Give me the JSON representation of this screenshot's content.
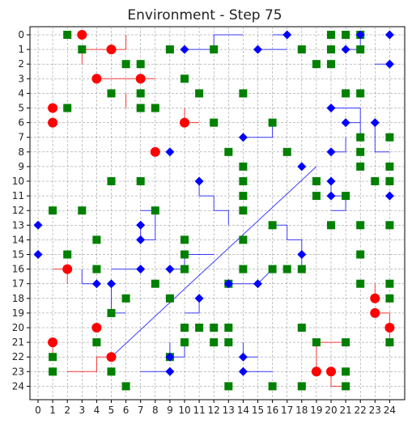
{
  "title": "Environment - Step 75",
  "x_ticks": [
    "0",
    "1",
    "2",
    "3",
    "4",
    "5",
    "6",
    "7",
    "8",
    "9",
    "10",
    "11",
    "12",
    "13",
    "14",
    "15",
    "16",
    "17",
    "18",
    "19",
    "20",
    "21",
    "22",
    "23",
    "24"
  ],
  "y_ticks": [
    "0",
    "1",
    "2",
    "3",
    "4",
    "5",
    "6",
    "7",
    "8",
    "9",
    "10",
    "11",
    "12",
    "13",
    "14",
    "15",
    "16",
    "17",
    "18",
    "19",
    "20",
    "21",
    "22",
    "23",
    "24"
  ],
  "colors": {
    "red": "#ff0000",
    "green": "#008000",
    "blue": "#0000ff",
    "grid": "#888888"
  },
  "grid": {
    "size": 25,
    "gridlines": true
  },
  "red_agents": [
    [
      3,
      0
    ],
    [
      5,
      1
    ],
    [
      4,
      3
    ],
    [
      7,
      3
    ],
    [
      1,
      5
    ],
    [
      1,
      6
    ],
    [
      10,
      6
    ],
    [
      8,
      8
    ],
    [
      2,
      16
    ],
    [
      23,
      18
    ],
    [
      23,
      19
    ],
    [
      4,
      20
    ],
    [
      24,
      20
    ],
    [
      1,
      21
    ],
    [
      5,
      22
    ],
    [
      19,
      23
    ],
    [
      20,
      23
    ]
  ],
  "green_items": [
    [
      2,
      0
    ],
    [
      20,
      0
    ],
    [
      21,
      0
    ],
    [
      22,
      0
    ],
    [
      3,
      1
    ],
    [
      9,
      1
    ],
    [
      12,
      1
    ],
    [
      18,
      1
    ],
    [
      20,
      1
    ],
    [
      22,
      1
    ],
    [
      6,
      2
    ],
    [
      7,
      2
    ],
    [
      19,
      2
    ],
    [
      20,
      2
    ],
    [
      10,
      3
    ],
    [
      5,
      4
    ],
    [
      7,
      4
    ],
    [
      11,
      4
    ],
    [
      14,
      4
    ],
    [
      21,
      4
    ],
    [
      22,
      4
    ],
    [
      2,
      5
    ],
    [
      7,
      5
    ],
    [
      8,
      5
    ],
    [
      12,
      6
    ],
    [
      16,
      6
    ],
    [
      22,
      7
    ],
    [
      24,
      7
    ],
    [
      13,
      8
    ],
    [
      17,
      8
    ],
    [
      22,
      8
    ],
    [
      14,
      9
    ],
    [
      22,
      9
    ],
    [
      24,
      9
    ],
    [
      5,
      10
    ],
    [
      7,
      10
    ],
    [
      14,
      10
    ],
    [
      19,
      10
    ],
    [
      23,
      10
    ],
    [
      24,
      10
    ],
    [
      14,
      11
    ],
    [
      19,
      11
    ],
    [
      21,
      11
    ],
    [
      1,
      12
    ],
    [
      3,
      12
    ],
    [
      8,
      12
    ],
    [
      14,
      12
    ],
    [
      16,
      13
    ],
    [
      20,
      13
    ],
    [
      22,
      13
    ],
    [
      24,
      13
    ],
    [
      4,
      14
    ],
    [
      10,
      14
    ],
    [
      14,
      14
    ],
    [
      2,
      15
    ],
    [
      10,
      15
    ],
    [
      22,
      15
    ],
    [
      4,
      16
    ],
    [
      10,
      16
    ],
    [
      14,
      16
    ],
    [
      16,
      16
    ],
    [
      17,
      16
    ],
    [
      18,
      16
    ],
    [
      8,
      17
    ],
    [
      13,
      17
    ],
    [
      22,
      17
    ],
    [
      24,
      17
    ],
    [
      6,
      18
    ],
    [
      24,
      18
    ],
    [
      9,
      18
    ],
    [
      5,
      19
    ],
    [
      10,
      20
    ],
    [
      11,
      20
    ],
    [
      12,
      20
    ],
    [
      13,
      20
    ],
    [
      18,
      20
    ],
    [
      4,
      21
    ],
    [
      10,
      21
    ],
    [
      12,
      21
    ],
    [
      13,
      21
    ],
    [
      19,
      21
    ],
    [
      21,
      21
    ],
    [
      24,
      21
    ],
    [
      1,
      22
    ],
    [
      9,
      22
    ],
    [
      1,
      23
    ],
    [
      5,
      23
    ],
    [
      21,
      23
    ],
    [
      6,
      24
    ],
    [
      13,
      24
    ],
    [
      16,
      24
    ],
    [
      18,
      24
    ],
    [
      21,
      24
    ]
  ],
  "blue_agents": [
    [
      17,
      0
    ],
    [
      22,
      0
    ],
    [
      24,
      0
    ],
    [
      10,
      1
    ],
    [
      15,
      1
    ],
    [
      21,
      1
    ],
    [
      24,
      2
    ],
    [
      20,
      5
    ],
    [
      21,
      6
    ],
    [
      23,
      6
    ],
    [
      14,
      7
    ],
    [
      20,
      8
    ],
    [
      9,
      8
    ],
    [
      18,
      9
    ],
    [
      11,
      10
    ],
    [
      20,
      10
    ],
    [
      20,
      11
    ],
    [
      24,
      11
    ],
    [
      0,
      13
    ],
    [
      7,
      13
    ],
    [
      7,
      14
    ],
    [
      0,
      15
    ],
    [
      18,
      15
    ],
    [
      7,
      16
    ],
    [
      9,
      16
    ],
    [
      4,
      17
    ],
    [
      5,
      17
    ],
    [
      13,
      17
    ],
    [
      15,
      17
    ],
    [
      11,
      18
    ],
    [
      9,
      22
    ],
    [
      14,
      22
    ],
    [
      9,
      23
    ],
    [
      14,
      23
    ]
  ],
  "red_paths": [
    [
      [
        3,
        2
      ],
      [
        3,
        1
      ],
      [
        4,
        1
      ],
      [
        5,
        1
      ],
      [
        6,
        1
      ],
      [
        6,
        0
      ]
    ],
    [
      [
        4,
        3
      ],
      [
        5,
        3
      ],
      [
        6,
        3
      ],
      [
        7,
        3
      ],
      [
        8,
        3
      ]
    ],
    [
      [
        6,
        5
      ],
      [
        6,
        4
      ]
    ],
    [
      [
        10,
        5
      ],
      [
        10,
        6
      ],
      [
        11,
        6
      ]
    ],
    [
      [
        1,
        16
      ],
      [
        2,
        16
      ],
      [
        2,
        17
      ]
    ],
    [
      [
        23,
        17
      ],
      [
        23,
        18
      ]
    ],
    [
      [
        23,
        19
      ],
      [
        24,
        19
      ],
      [
        24,
        20
      ],
      [
        24,
        21
      ]
    ],
    [
      [
        1,
        21
      ],
      [
        1,
        22
      ]
    ],
    [
      [
        2,
        23
      ],
      [
        4,
        23
      ],
      [
        4,
        22
      ],
      [
        5,
        22
      ]
    ],
    [
      [
        19,
        23
      ],
      [
        19,
        21
      ],
      [
        21,
        21
      ]
    ],
    [
      [
        20,
        23
      ],
      [
        20,
        24
      ],
      [
        21,
        24
      ]
    ]
  ],
  "blue_paths": [
    [
      [
        10,
        1
      ],
      [
        12,
        1
      ],
      [
        12,
        0
      ],
      [
        14,
        0
      ]
    ],
    [
      [
        15,
        1
      ],
      [
        17,
        1
      ]
    ],
    [
      [
        16,
        0
      ],
      [
        17,
        0
      ]
    ],
    [
      [
        21,
        1
      ],
      [
        22,
        1
      ],
      [
        22,
        0
      ]
    ],
    [
      [
        23,
        2
      ],
      [
        24,
        2
      ]
    ],
    [
      [
        20,
        5
      ],
      [
        22,
        5
      ],
      [
        22,
        6
      ]
    ],
    [
      [
        21,
        6
      ],
      [
        22,
        6
      ],
      [
        22,
        7
      ]
    ],
    [
      [
        23,
        6
      ],
      [
        23,
        8
      ],
      [
        24,
        8
      ]
    ],
    [
      [
        14,
        7
      ],
      [
        16,
        7
      ],
      [
        16,
        6
      ]
    ],
    [
      [
        20,
        8
      ],
      [
        21,
        8
      ],
      [
        21,
        7
      ]
    ],
    [
      [
        11,
        10
      ],
      [
        11,
        11
      ],
      [
        12,
        11
      ],
      [
        12,
        12
      ]
    ],
    [
      [
        20,
        10
      ],
      [
        20,
        11
      ],
      [
        21,
        11
      ]
    ],
    [
      [
        20,
        12
      ],
      [
        21,
        12
      ],
      [
        21,
        11
      ]
    ],
    [
      [
        12,
        12
      ],
      [
        13,
        12
      ],
      [
        13,
        13
      ]
    ],
    [
      [
        16,
        13
      ],
      [
        17,
        13
      ],
      [
        17,
        14
      ],
      [
        18,
        14
      ],
      [
        18,
        15
      ]
    ],
    [
      [
        7,
        12
      ],
      [
        8,
        12
      ],
      [
        8,
        14
      ],
      [
        7,
        14
      ]
    ],
    [
      [
        7,
        13
      ],
      [
        7,
        14
      ]
    ],
    [
      [
        18,
        15
      ],
      [
        18,
        16
      ]
    ],
    [
      [
        3,
        16
      ],
      [
        3,
        17
      ],
      [
        4,
        17
      ]
    ],
    [
      [
        5,
        16
      ],
      [
        6,
        16
      ],
      [
        7,
        16
      ]
    ],
    [
      [
        5,
        17
      ],
      [
        5,
        19
      ],
      [
        6,
        19
      ]
    ],
    [
      [
        9,
        16
      ],
      [
        10,
        16
      ],
      [
        10,
        15
      ],
      [
        12,
        15
      ]
    ],
    [
      [
        13,
        17
      ],
      [
        15,
        17
      ],
      [
        16,
        16
      ]
    ],
    [
      [
        11,
        18
      ],
      [
        11,
        19
      ],
      [
        10,
        19
      ]
    ],
    [
      [
        9,
        21
      ],
      [
        9,
        22
      ],
      [
        10,
        22
      ],
      [
        10,
        21
      ]
    ],
    [
      [
        14,
        21
      ],
      [
        14,
        22
      ],
      [
        15,
        22
      ]
    ],
    [
      [
        7,
        23
      ],
      [
        9,
        23
      ]
    ],
    [
      [
        14,
        23
      ],
      [
        16,
        23
      ]
    ],
    [
      [
        0,
        13
      ],
      [
        0,
        13
      ]
    ]
  ],
  "diagonal_line": [
    [
      5,
      22
    ],
    [
      19,
      9
    ]
  ]
}
